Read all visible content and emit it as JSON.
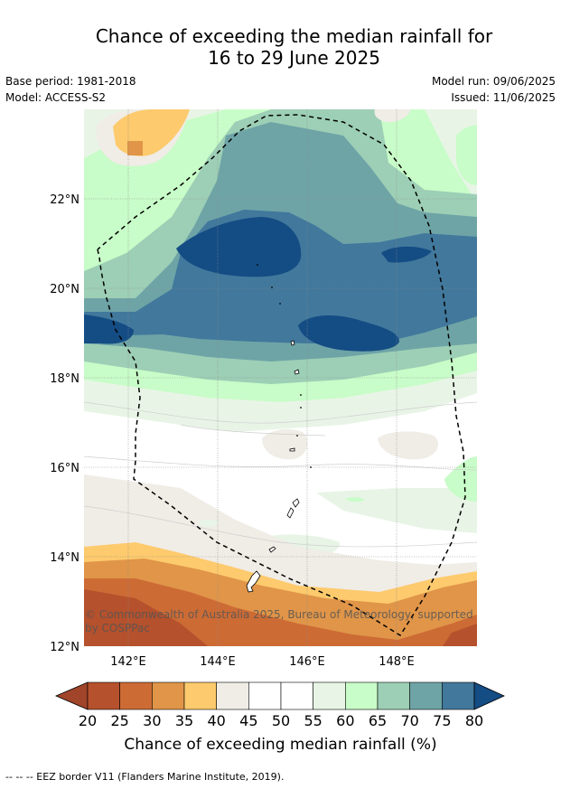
{
  "title": {
    "line1": "Chance of exceeding the median rainfall for",
    "line2": "16 to 29 June 2025"
  },
  "meta": {
    "base_period": "Base period: 1981-2018",
    "model": "Model: ACCESS-S2",
    "model_run": "Model run: 09/06/2025",
    "issued": "Issued: 11/06/2025"
  },
  "map": {
    "lat_ticks": [
      "22°N",
      "20°N",
      "18°N",
      "16°N",
      "14°N",
      "12°N"
    ],
    "lon_ticks": [
      "142°E",
      "144°E",
      "146°E",
      "148°E"
    ],
    "copyright": "© Commonwealth of Australia 2025, Bureau of Meteorology, supported by COSPPac",
    "copyright_line1": "© Commonwealth of Australia 2025, Bureau of Meteorology, supported",
    "copyright_line2": "by COSPPac"
  },
  "colorbar": {
    "ticks": [
      "20",
      "25",
      "30",
      "35",
      "40",
      "45",
      "50",
      "55",
      "60",
      "65",
      "70",
      "75",
      "80"
    ],
    "label": "Chance of exceeding median rainfall (%)",
    "colors": [
      "#a0442a",
      "#b5512c",
      "#cd6b35",
      "#e09548",
      "#fdca6d",
      "#f0ece6",
      "#ffffff",
      "#ffffff",
      "#e8f5e6",
      "#c8fcc8",
      "#9dcfb6",
      "#6ea4a6",
      "#41789c",
      "#144c84"
    ]
  },
  "footer": {
    "eez_note": "--  --  -- EEZ border V11 (Flanders Marine Institute, 2019)."
  }
}
